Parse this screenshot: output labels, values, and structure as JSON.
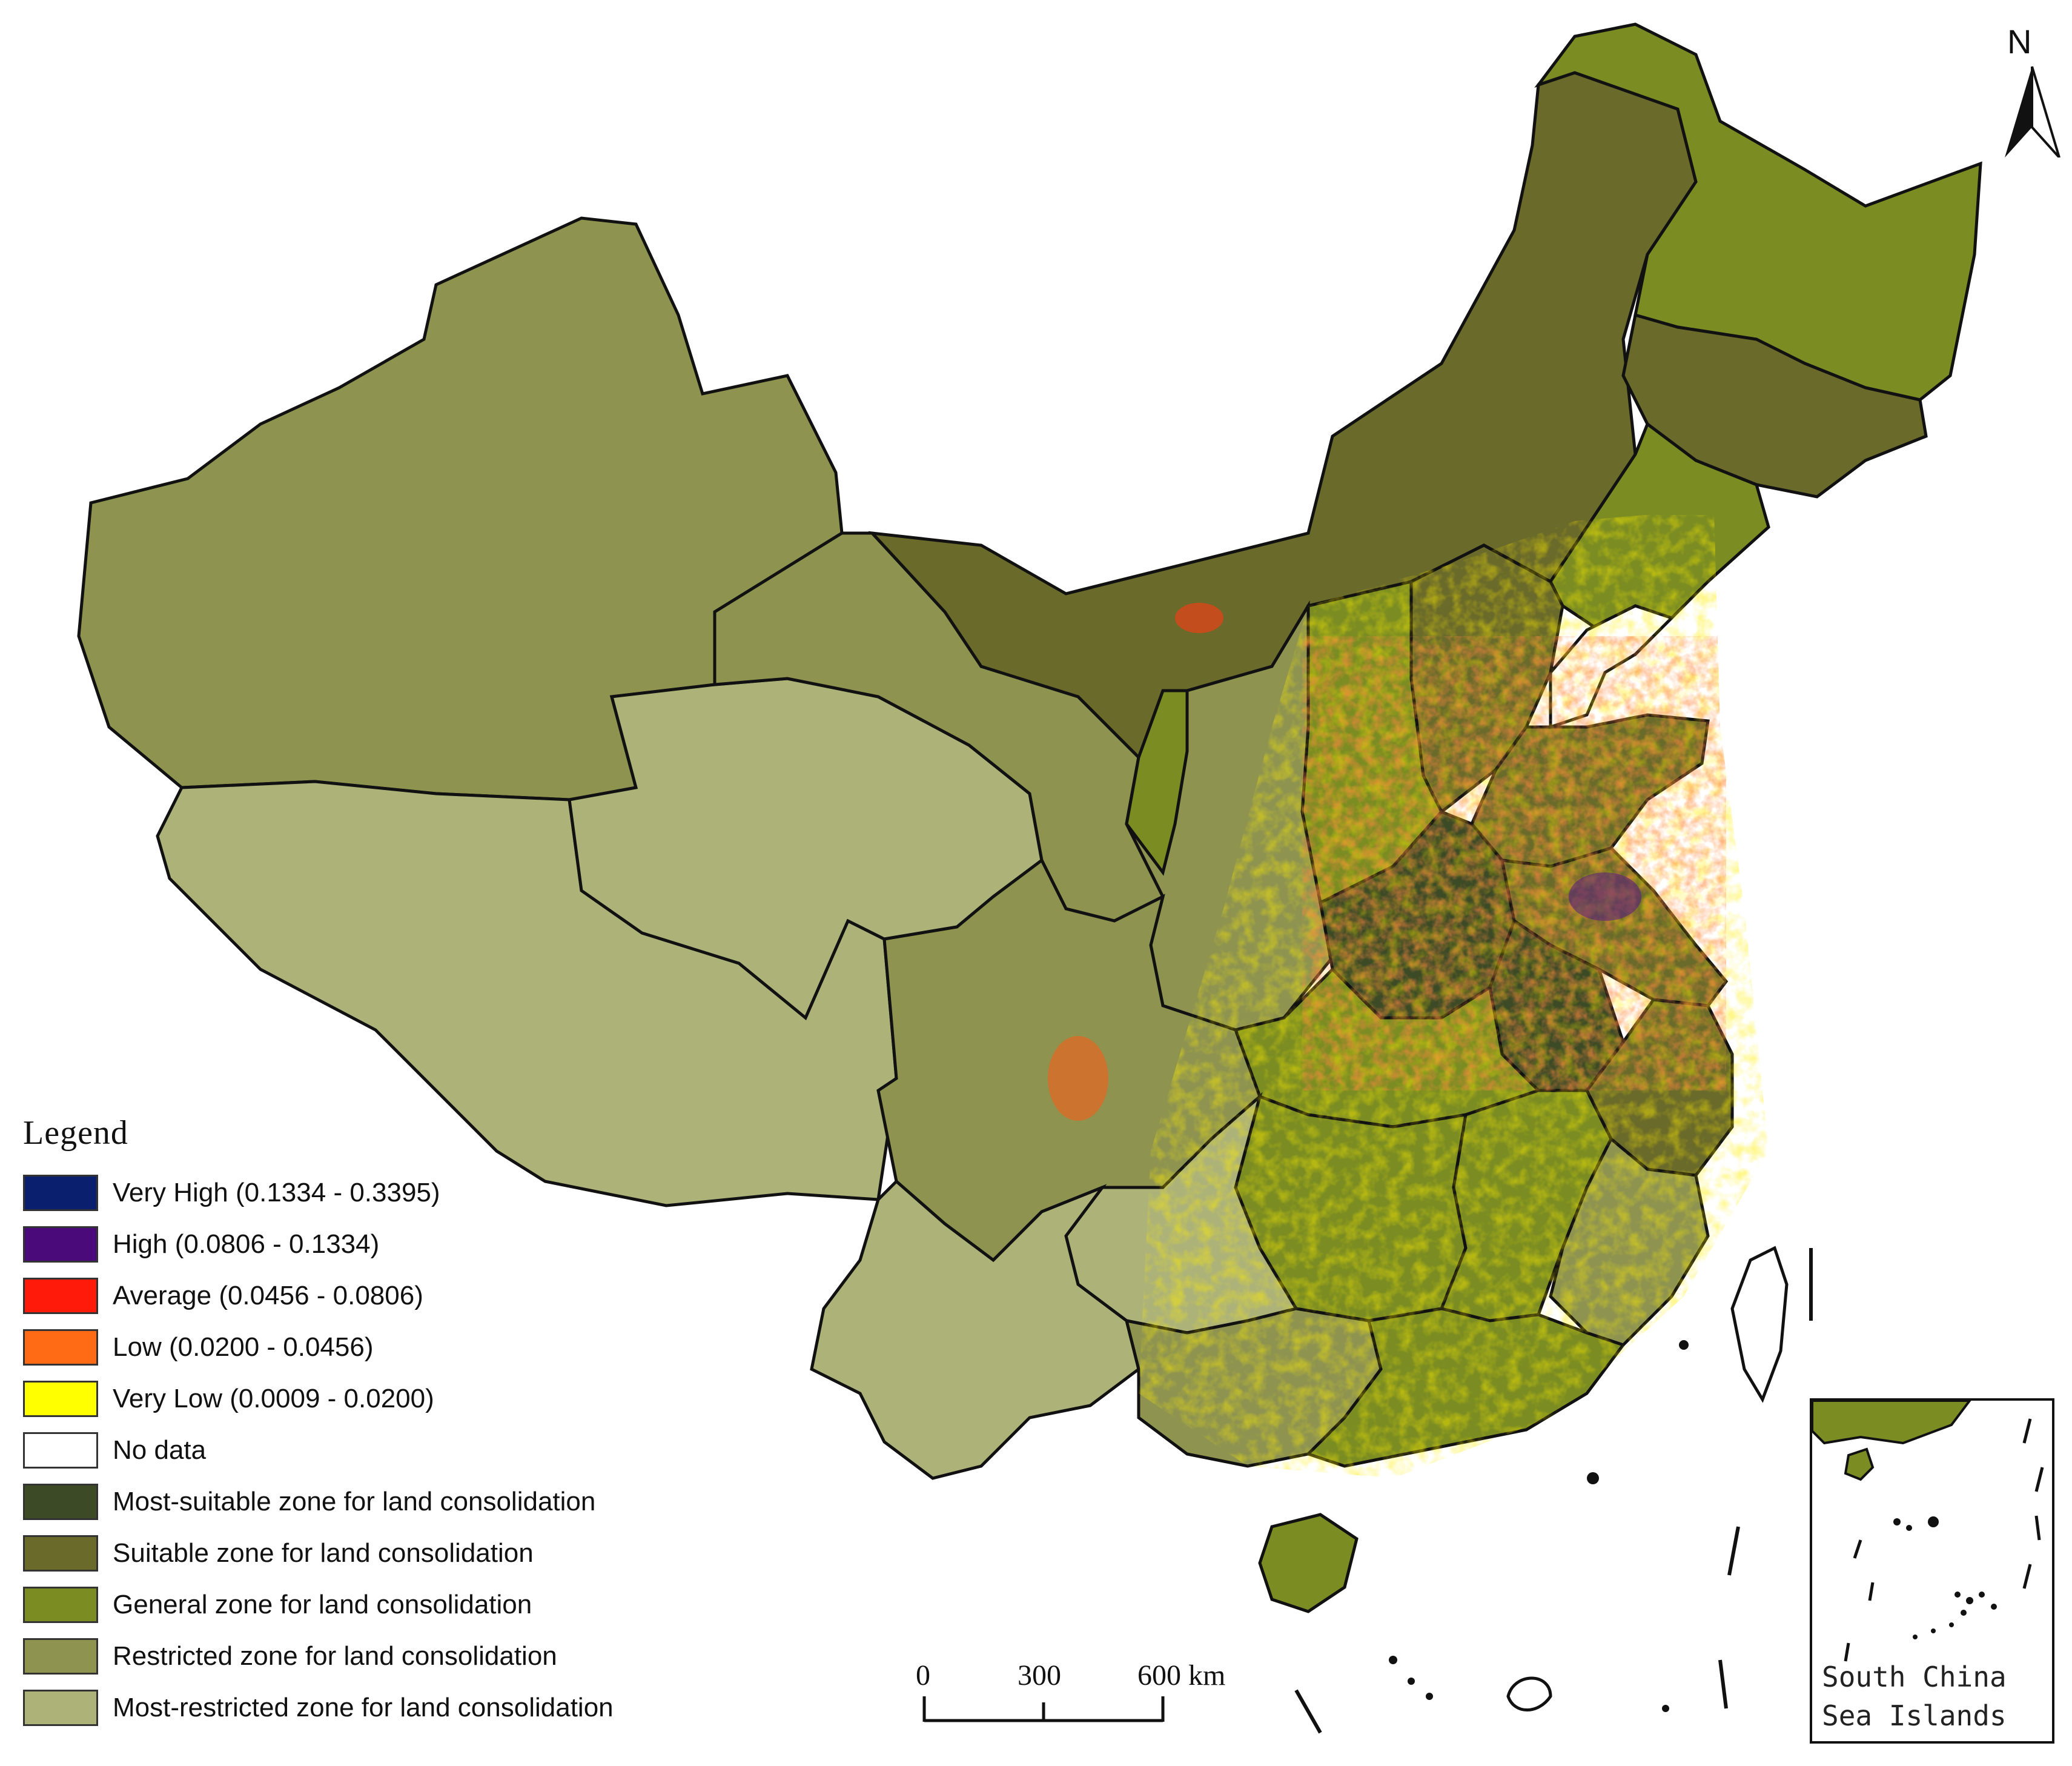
{
  "legend": {
    "title": "Legend",
    "items": [
      {
        "label": "Very High (0.1334 - 0.3395)",
        "color": "#0a1f6e"
      },
      {
        "label": "High (0.0806 - 0.1334)",
        "color": "#4b0a7a"
      },
      {
        "label": "Average (0.0456 - 0.0806)",
        "color": "#ff1a0a"
      },
      {
        "label": "Low (0.0200 - 0.0456)",
        "color": "#ff6a14"
      },
      {
        "label": "Very Low (0.0009 - 0.0200)",
        "color": "#ffff00"
      },
      {
        "label": "No data",
        "color": "#ffffff"
      },
      {
        "label": "Most-suitable zone for land consolidation",
        "color": "#3c4a26"
      },
      {
        "label": "Suitable zone for land consolidation",
        "color": "#6a6a2a"
      },
      {
        "label": "General zone for land consolidation",
        "color": "#7a8c22"
      },
      {
        "label": "Restricted zone for land consolidation",
        "color": "#8e9450"
      },
      {
        "label": "Most-restricted zone for land consolidation",
        "color": "#adb378"
      }
    ]
  },
  "north_arrow": {
    "label": "N"
  },
  "scale_bar": {
    "ticks": [
      "0",
      "300",
      "600 km"
    ]
  },
  "inset": {
    "label_line1": "South China",
    "label_line2": "Sea Islands"
  }
}
